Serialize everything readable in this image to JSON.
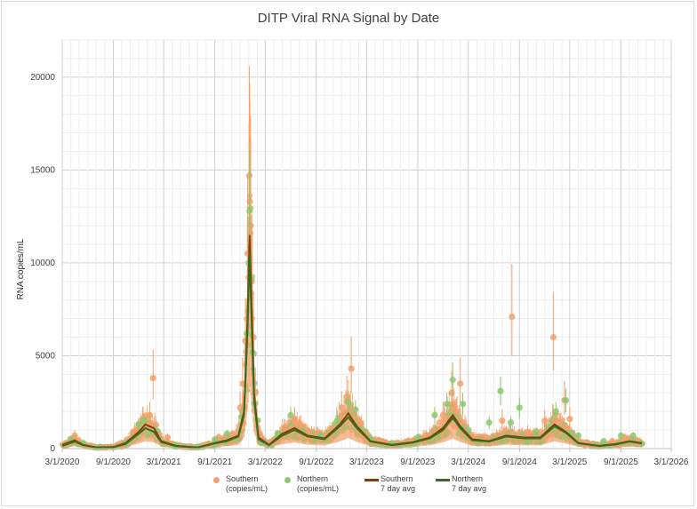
{
  "colors": {
    "southern_points": "#f4a06b",
    "northern_points": "#8cc870",
    "southern_avg": "#8b3a0f",
    "northern_avg": "#3a6b1e",
    "grid": "#d9d9d9"
  },
  "chart_data": {
    "type": "scatter",
    "title": "DITP Viral RNA Signal by Date",
    "xlabel": "",
    "ylabel": "RNA copies/mL",
    "xlim": [
      "2020-03-01",
      "2026-03-01"
    ],
    "ylim": [
      0,
      22000
    ],
    "y_ticks": [
      0,
      5000,
      10000,
      15000,
      20000
    ],
    "x_tick_labels": [
      "3/1/2020",
      "9/1/2020",
      "3/1/2021",
      "9/1/2021",
      "3/1/2022",
      "9/1/2022",
      "3/1/2023",
      "9/1/2023",
      "3/1/2024",
      "9/1/2024",
      "3/1/2025",
      "9/1/2025",
      "3/1/2026"
    ],
    "grid": true,
    "legend_position": "bottom",
    "series": [
      {
        "name": "Southern (copies/mL)",
        "kind": "points",
        "points": [
          [
            "2020-04-15",
            700
          ],
          [
            "2020-06-01",
            150
          ],
          [
            "2020-08-01",
            80
          ],
          [
            "2020-10-01",
            100
          ],
          [
            "2020-11-15",
            900
          ],
          [
            "2020-12-15",
            1600
          ],
          [
            "2021-01-10",
            1800
          ],
          [
            "2021-01-22",
            3800
          ],
          [
            "2021-03-15",
            600
          ],
          [
            "2021-06-01",
            100
          ],
          [
            "2021-08-01",
            200
          ],
          [
            "2021-09-15",
            600
          ],
          [
            "2021-11-01",
            700
          ],
          [
            "2021-12-01",
            2200
          ],
          [
            "2021-12-10",
            3500
          ],
          [
            "2021-12-20",
            5800
          ],
          [
            "2021-12-28",
            10500
          ],
          [
            "2022-01-03",
            14700
          ],
          [
            "2022-01-05",
            13300
          ],
          [
            "2022-01-08",
            12000
          ],
          [
            "2022-01-12",
            9000
          ],
          [
            "2022-01-18",
            6000
          ],
          [
            "2022-01-25",
            3000
          ],
          [
            "2022-02-10",
            800
          ],
          [
            "2022-04-01",
            300
          ],
          [
            "2022-05-15",
            1000
          ],
          [
            "2022-06-15",
            1600
          ],
          [
            "2022-08-01",
            900
          ],
          [
            "2022-10-01",
            600
          ],
          [
            "2022-12-01",
            2200
          ],
          [
            "2022-12-20",
            2800
          ],
          [
            "2023-01-05",
            4300
          ],
          [
            "2023-02-15",
            700
          ],
          [
            "2023-05-01",
            300
          ],
          [
            "2023-08-01",
            400
          ],
          [
            "2023-10-01",
            700
          ],
          [
            "2023-12-01",
            1800
          ],
          [
            "2024-01-01",
            3000
          ],
          [
            "2024-01-20",
            2000
          ],
          [
            "2024-02-01",
            3500
          ],
          [
            "2024-03-15",
            500
          ],
          [
            "2024-05-01",
            600
          ],
          [
            "2024-07-01",
            1500
          ],
          [
            "2024-08-05",
            7100
          ],
          [
            "2024-10-01",
            900
          ],
          [
            "2024-12-01",
            1500
          ],
          [
            "2025-01-01",
            6000
          ],
          [
            "2025-02-10",
            2600
          ],
          [
            "2025-03-01",
            1600
          ],
          [
            "2025-05-01",
            300
          ],
          [
            "2025-08-01",
            400
          ],
          [
            "2025-09-15",
            600
          ],
          [
            "2025-11-01",
            400
          ]
        ]
      },
      {
        "name": "Northern (copies/mL)",
        "kind": "points",
        "points": [
          [
            "2020-04-01",
            500
          ],
          [
            "2020-05-15",
            300
          ],
          [
            "2020-07-15",
            100
          ],
          [
            "2020-10-15",
            300
          ],
          [
            "2020-12-01",
            1300
          ],
          [
            "2020-12-20",
            1500
          ],
          [
            "2021-02-01",
            900
          ],
          [
            "2021-04-15",
            200
          ],
          [
            "2021-07-01",
            100
          ],
          [
            "2021-09-01",
            500
          ],
          [
            "2021-10-15",
            800
          ],
          [
            "2021-12-05",
            1700
          ],
          [
            "2021-12-25",
            6200
          ],
          [
            "2022-01-01",
            10000
          ],
          [
            "2022-01-04",
            12800
          ],
          [
            "2022-01-09",
            9100
          ],
          [
            "2022-01-14",
            5200
          ],
          [
            "2022-01-22",
            2400
          ],
          [
            "2022-02-15",
            300
          ],
          [
            "2022-04-15",
            800
          ],
          [
            "2022-06-01",
            1800
          ],
          [
            "2022-07-15",
            900
          ],
          [
            "2022-09-15",
            700
          ],
          [
            "2022-11-15",
            1500
          ],
          [
            "2022-12-25",
            2500
          ],
          [
            "2023-01-20",
            2100
          ],
          [
            "2023-03-15",
            500
          ],
          [
            "2023-06-01",
            300
          ],
          [
            "2023-09-01",
            600
          ],
          [
            "2023-11-01",
            1800
          ],
          [
            "2023-12-15",
            2400
          ],
          [
            "2024-01-05",
            3700
          ],
          [
            "2024-02-10",
            2400
          ],
          [
            "2024-03-01",
            1000
          ],
          [
            "2024-05-15",
            1400
          ],
          [
            "2024-06-25",
            3100
          ],
          [
            "2024-08-01",
            1400
          ],
          [
            "2024-09-01",
            2200
          ],
          [
            "2024-11-01",
            900
          ],
          [
            "2025-01-10",
            2000
          ],
          [
            "2025-02-15",
            2600
          ],
          [
            "2025-04-01",
            700
          ],
          [
            "2025-07-01",
            400
          ],
          [
            "2025-09-01",
            700
          ],
          [
            "2025-10-15",
            700
          ]
        ]
      },
      {
        "name": "Southern 7 day avg",
        "kind": "line",
        "points": [
          [
            "2020-03-01",
            200
          ],
          [
            "2020-04-15",
            450
          ],
          [
            "2020-05-15",
            200
          ],
          [
            "2020-07-01",
            70
          ],
          [
            "2020-09-01",
            80
          ],
          [
            "2020-10-15",
            300
          ],
          [
            "2020-12-01",
            900
          ],
          [
            "2020-12-25",
            1300
          ],
          [
            "2021-01-25",
            1100
          ],
          [
            "2021-02-20",
            400
          ],
          [
            "2021-04-15",
            150
          ],
          [
            "2021-07-01",
            60
          ],
          [
            "2021-09-01",
            300
          ],
          [
            "2021-10-15",
            450
          ],
          [
            "2021-11-25",
            700
          ],
          [
            "2021-12-15",
            2000
          ],
          [
            "2021-12-28",
            7000
          ],
          [
            "2022-01-04",
            11500
          ],
          [
            "2022-01-10",
            8500
          ],
          [
            "2022-01-20",
            3000
          ],
          [
            "2022-02-05",
            600
          ],
          [
            "2022-03-15",
            200
          ],
          [
            "2022-05-01",
            800
          ],
          [
            "2022-06-15",
            1100
          ],
          [
            "2022-08-01",
            700
          ],
          [
            "2022-10-01",
            550
          ],
          [
            "2022-11-25",
            1300
          ],
          [
            "2022-12-25",
            1900
          ],
          [
            "2023-01-25",
            1200
          ],
          [
            "2023-03-15",
            400
          ],
          [
            "2023-06-01",
            200
          ],
          [
            "2023-08-15",
            350
          ],
          [
            "2023-10-15",
            600
          ],
          [
            "2023-12-01",
            1100
          ],
          [
            "2024-01-05",
            1800
          ],
          [
            "2024-02-01",
            1200
          ],
          [
            "2024-03-15",
            500
          ],
          [
            "2024-05-15",
            400
          ],
          [
            "2024-07-15",
            700
          ],
          [
            "2024-09-15",
            600
          ],
          [
            "2024-11-15",
            600
          ],
          [
            "2025-01-05",
            1300
          ],
          [
            "2025-02-15",
            900
          ],
          [
            "2025-04-01",
            300
          ],
          [
            "2025-06-15",
            150
          ],
          [
            "2025-08-15",
            250
          ],
          [
            "2025-10-01",
            400
          ],
          [
            "2025-11-15",
            300
          ]
        ]
      },
      {
        "name": "Northern 7 day avg",
        "kind": "line",
        "points": [
          [
            "2020-03-01",
            150
          ],
          [
            "2020-04-15",
            380
          ],
          [
            "2020-05-15",
            180
          ],
          [
            "2020-07-01",
            60
          ],
          [
            "2020-09-01",
            70
          ],
          [
            "2020-10-15",
            250
          ],
          [
            "2020-12-01",
            800
          ],
          [
            "2020-12-25",
            1100
          ],
          [
            "2021-01-25",
            900
          ],
          [
            "2021-02-20",
            350
          ],
          [
            "2021-04-15",
            130
          ],
          [
            "2021-07-01",
            50
          ],
          [
            "2021-09-01",
            280
          ],
          [
            "2021-10-15",
            400
          ],
          [
            "2021-11-25",
            650
          ],
          [
            "2021-12-15",
            1800
          ],
          [
            "2021-12-28",
            6500
          ],
          [
            "2022-01-04",
            10500
          ],
          [
            "2022-01-10",
            7500
          ],
          [
            "2022-01-20",
            2700
          ],
          [
            "2022-02-05",
            500
          ],
          [
            "2022-03-15",
            180
          ],
          [
            "2022-05-01",
            700
          ],
          [
            "2022-06-15",
            1000
          ],
          [
            "2022-08-01",
            650
          ],
          [
            "2022-10-01",
            500
          ],
          [
            "2022-11-25",
            1200
          ],
          [
            "2022-12-25",
            1700
          ],
          [
            "2023-01-25",
            1100
          ],
          [
            "2023-03-15",
            380
          ],
          [
            "2023-06-01",
            180
          ],
          [
            "2023-08-15",
            320
          ],
          [
            "2023-10-15",
            550
          ],
          [
            "2023-12-01",
            1000
          ],
          [
            "2024-01-05",
            1650
          ],
          [
            "2024-02-01",
            1100
          ],
          [
            "2024-03-15",
            450
          ],
          [
            "2024-05-15",
            380
          ],
          [
            "2024-07-15",
            650
          ],
          [
            "2024-09-15",
            550
          ],
          [
            "2024-11-15",
            550
          ],
          [
            "2025-01-05",
            1200
          ],
          [
            "2025-02-15",
            850
          ],
          [
            "2025-04-01",
            280
          ],
          [
            "2025-06-15",
            140
          ],
          [
            "2025-08-15",
            230
          ],
          [
            "2025-10-01",
            380
          ],
          [
            "2025-11-15",
            280
          ]
        ]
      }
    ]
  },
  "legend": [
    {
      "line1": "Southern",
      "line2": "(copies/mL)"
    },
    {
      "line1": "Northern",
      "line2": "(copies/mL)"
    },
    {
      "line1": "Southern",
      "line2": "7 day avg"
    },
    {
      "line1": "Northern",
      "line2": "7 day avg"
    }
  ]
}
